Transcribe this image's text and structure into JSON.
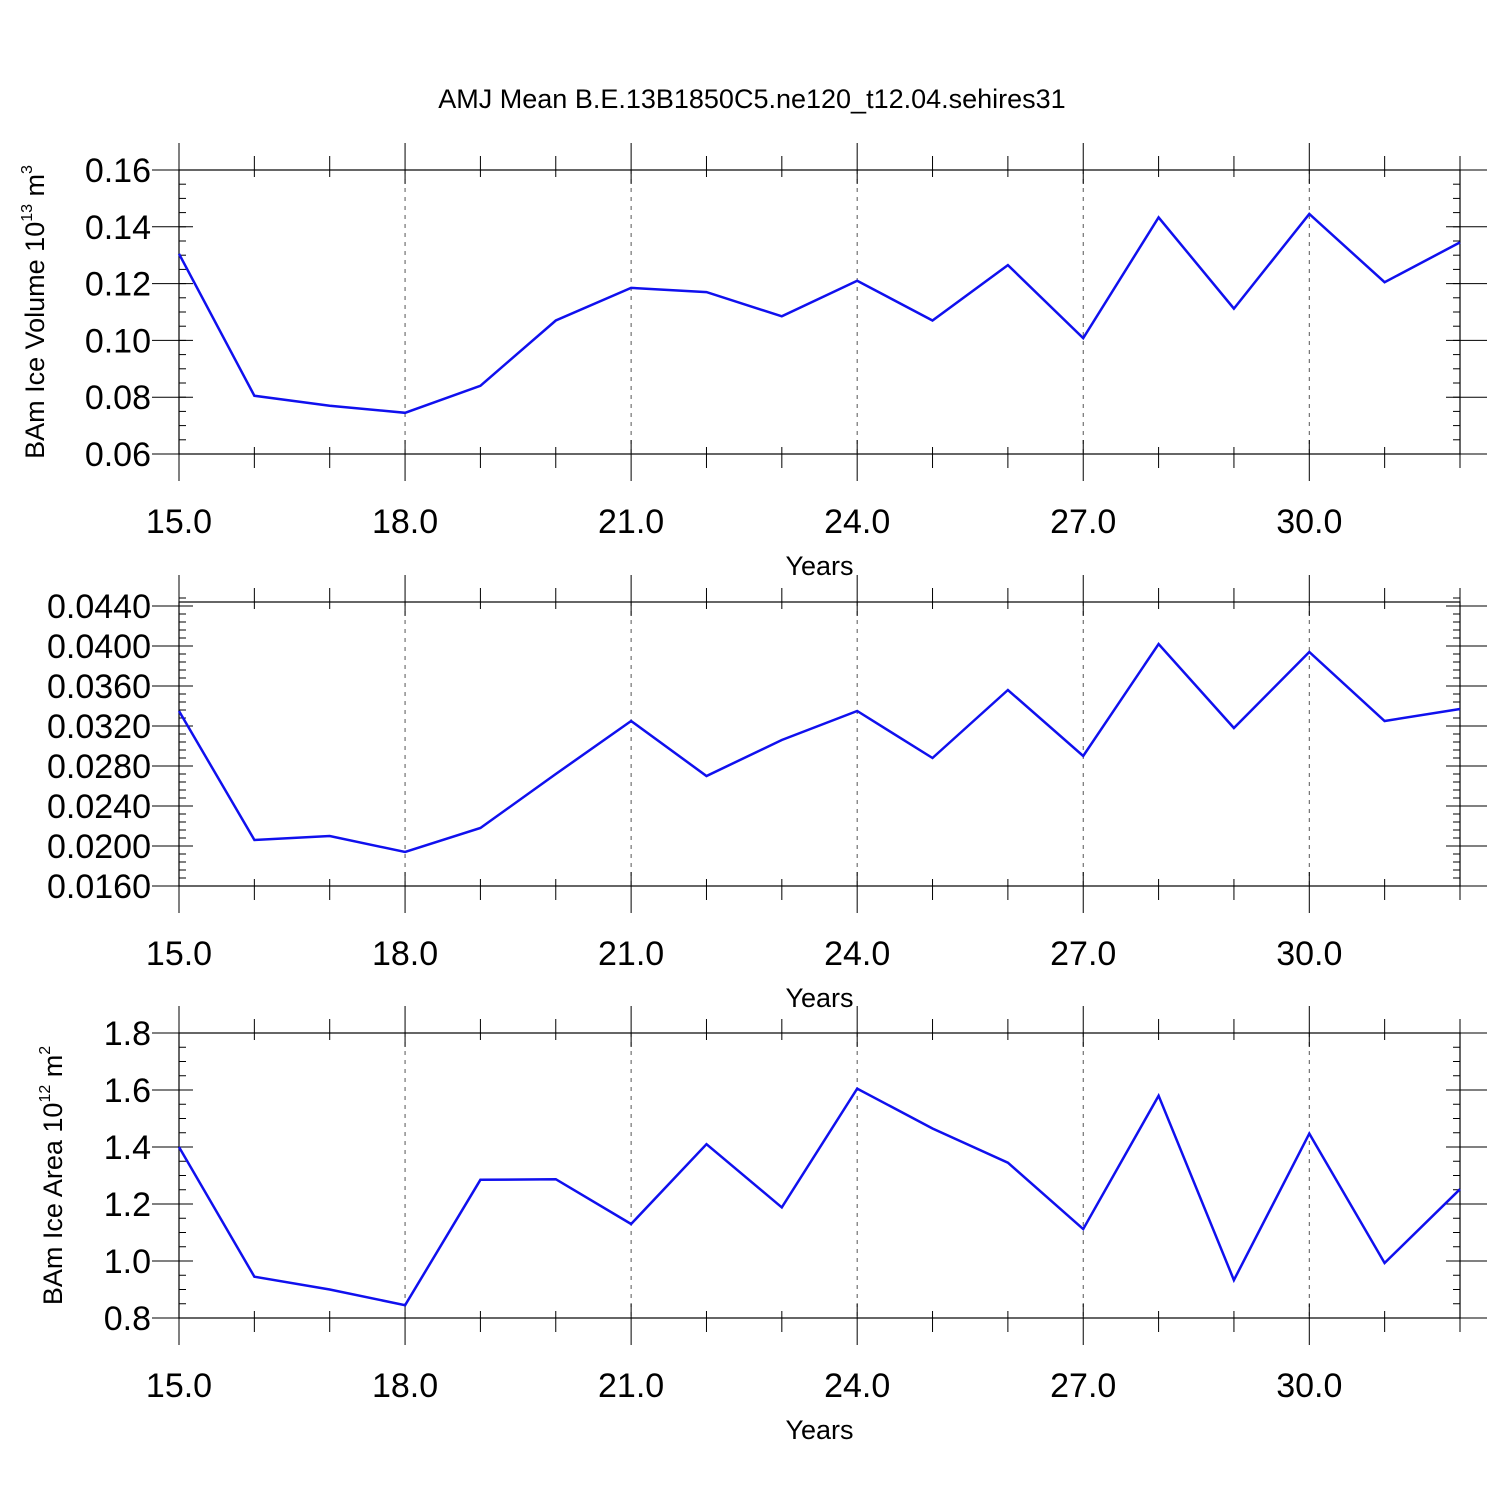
{
  "title": "AMJ Mean B.E.13B1850C5.ne120_t12.04.sehires31",
  "line_color": "#1010ee",
  "chart_data": [
    {
      "type": "line",
      "xlabel": "Years",
      "ylabel": {
        "text": "BAm Ice Volume 10",
        "exponent": "13",
        "unit": "m",
        "unit_exponent": "3"
      },
      "xlim": [
        15,
        32
      ],
      "ylim": [
        0.06,
        0.16
      ],
      "x_ticks": [
        15,
        18,
        21,
        24,
        27,
        30
      ],
      "x_tick_labels": [
        "15.0",
        "18.0",
        "21.0",
        "24.0",
        "27.0",
        "30.0"
      ],
      "y_ticks": [
        0.06,
        0.08,
        0.1,
        0.12,
        0.14,
        0.16
      ],
      "y_tick_labels": [
        "0.06",
        "0.08",
        "0.10",
        "0.12",
        "0.14",
        "0.16"
      ],
      "y_minor_step": 0.005,
      "grid": "dashed-vertical",
      "x": [
        15,
        16,
        17,
        18,
        19,
        20,
        21,
        22,
        23,
        24,
        25,
        26,
        27,
        28,
        29,
        30,
        31,
        32
      ],
      "values": [
        0.1305,
        0.0805,
        0.077,
        0.0745,
        0.084,
        0.107,
        0.1185,
        0.117,
        0.1085,
        0.121,
        0.107,
        0.1265,
        0.1008,
        0.1433,
        0.1112,
        0.1445,
        0.1205,
        0.1345
      ]
    },
    {
      "type": "line",
      "xlabel": "Years",
      "ylabel": {
        "text": "",
        "exponent": "",
        "unit": "",
        "unit_exponent": ""
      },
      "xlim": [
        15,
        32
      ],
      "ylim": [
        0.016,
        0.0444
      ],
      "x_ticks": [
        15,
        18,
        21,
        24,
        27,
        30
      ],
      "x_tick_labels": [
        "15.0",
        "18.0",
        "21.0",
        "24.0",
        "27.0",
        "30.0"
      ],
      "y_ticks": [
        0.016,
        0.02,
        0.024,
        0.028,
        0.032,
        0.036,
        0.04,
        0.044
      ],
      "y_tick_labels": [
        "0.0160",
        "0.0200",
        "0.0240",
        "0.0280",
        "0.0320",
        "0.0360",
        "0.0400",
        "0.0440"
      ],
      "y_minor_step": 0.0008,
      "grid": "dashed-vertical",
      "x": [
        15,
        16,
        17,
        18,
        19,
        20,
        21,
        22,
        23,
        24,
        25,
        26,
        27,
        28,
        29,
        30,
        31,
        32
      ],
      "values": [
        0.0335,
        0.0206,
        0.021,
        0.0194,
        0.0218,
        0.0272,
        0.0325,
        0.027,
        0.0306,
        0.0335,
        0.0288,
        0.0356,
        0.029,
        0.0402,
        0.0318,
        0.0394,
        0.0325,
        0.0337
      ]
    },
    {
      "type": "line",
      "xlabel": "Years",
      "ylabel": {
        "text": "BAm Ice Area 10",
        "exponent": "12",
        "unit": "m",
        "unit_exponent": "2"
      },
      "xlim": [
        15,
        32
      ],
      "ylim": [
        0.8,
        1.8
      ],
      "x_ticks": [
        15,
        18,
        21,
        24,
        27,
        30
      ],
      "x_tick_labels": [
        "15.0",
        "18.0",
        "21.0",
        "24.0",
        "27.0",
        "30.0"
      ],
      "y_ticks": [
        0.8,
        1.0,
        1.2,
        1.4,
        1.6,
        1.8
      ],
      "y_tick_labels": [
        "0.8",
        "1.0",
        "1.2",
        "1.4",
        "1.6",
        "1.8"
      ],
      "y_minor_step": 0.05,
      "grid": "dashed-vertical",
      "x": [
        15,
        16,
        17,
        18,
        19,
        20,
        21,
        22,
        23,
        24,
        25,
        26,
        27,
        28,
        29,
        30,
        31,
        32
      ],
      "values": [
        1.4,
        0.945,
        0.9,
        0.845,
        1.285,
        1.287,
        1.13,
        1.41,
        1.188,
        1.605,
        1.465,
        1.345,
        1.112,
        1.58,
        0.933,
        1.447,
        0.993,
        1.252
      ]
    }
  ]
}
